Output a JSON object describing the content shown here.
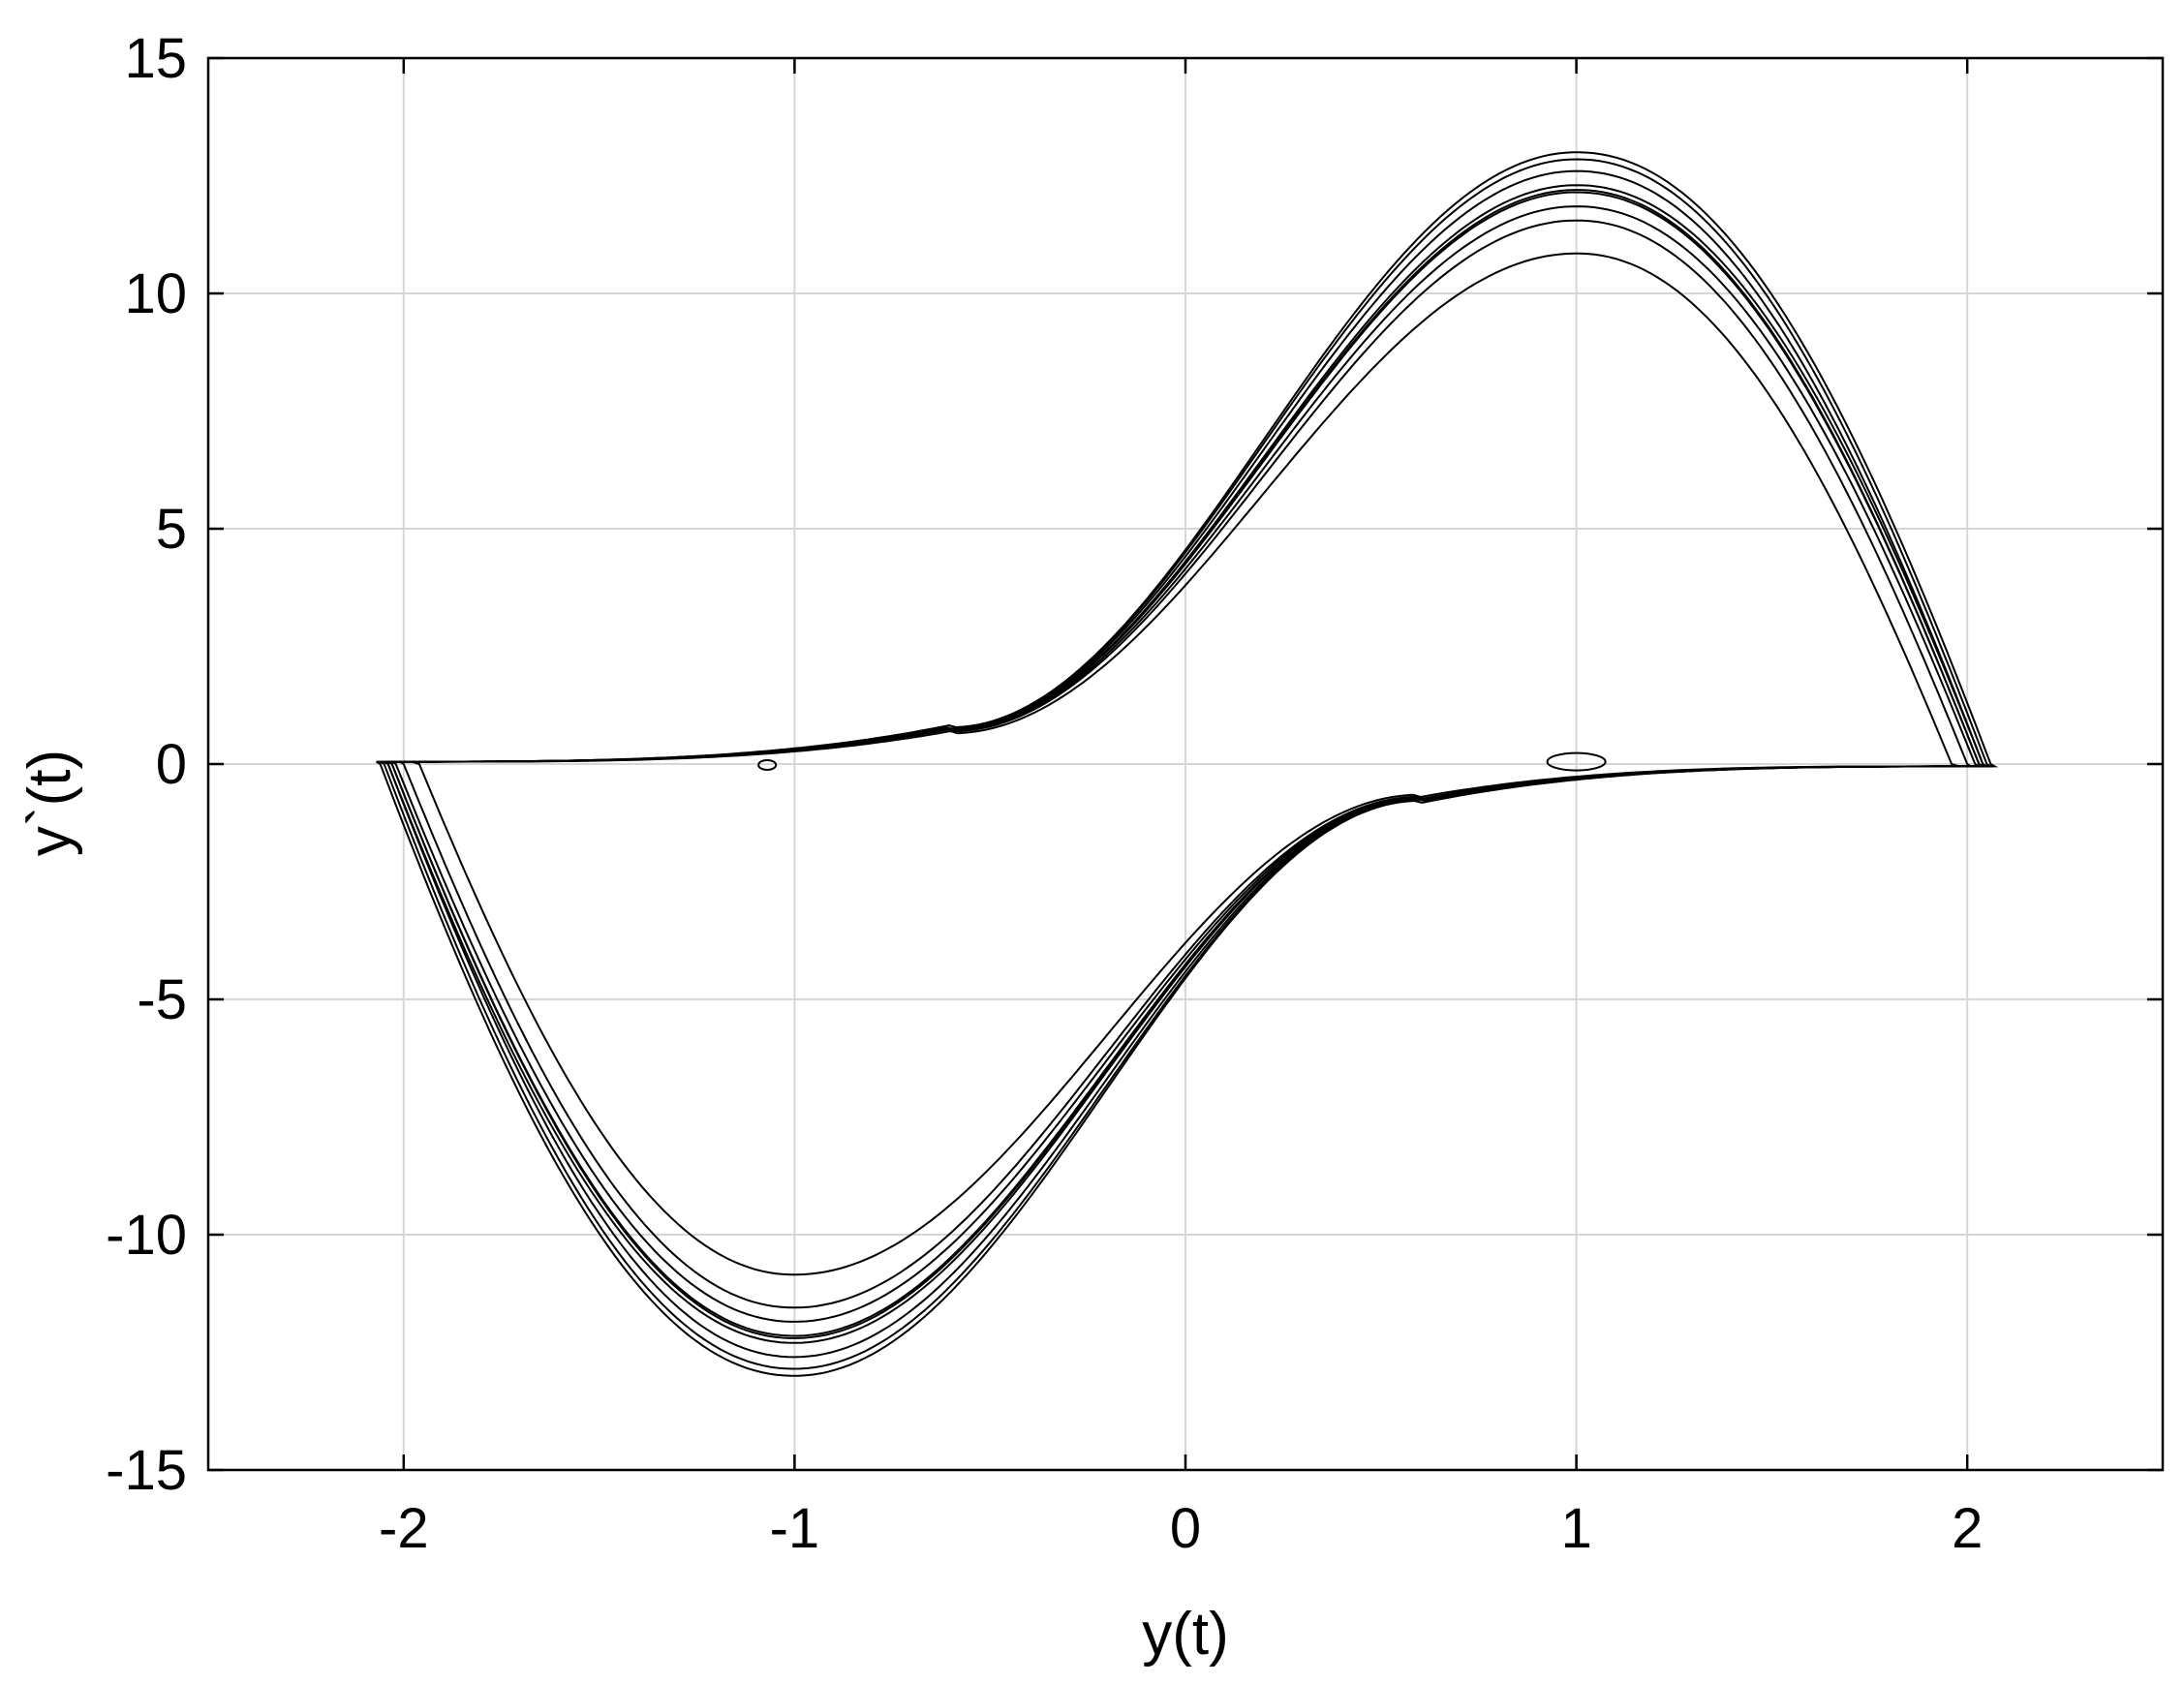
{
  "chart_data": {
    "type": "line",
    "title": "",
    "xlabel": "y(t)",
    "ylabel": "y`(t)",
    "xlim": [
      -2.5,
      2.5
    ],
    "ylim": [
      -15,
      15
    ],
    "xticks": [
      -2,
      -1,
      0,
      1,
      2
    ],
    "yticks": [
      -15,
      -10,
      -5,
      0,
      5,
      10,
      15
    ],
    "xtick_labels": [
      "-2",
      "-1",
      "0",
      "1",
      "2"
    ],
    "ytick_labels": [
      "-15",
      "-10",
      "-5",
      "0",
      "5",
      "10",
      "15"
    ],
    "grid": true,
    "line_color": "#000000",
    "series": [
      {
        "values_description_free": true,
        "peak_amplitude": 13.0,
        "x_extent": [
          -2.07,
          2.06
        ]
      },
      {
        "values_description_free": true,
        "peak_amplitude": 12.85,
        "x_extent": [
          -2.06,
          2.05
        ]
      },
      {
        "values_description_free": true,
        "peak_amplitude": 12.6,
        "x_extent": [
          -2.05,
          2.04
        ]
      },
      {
        "values_description_free": true,
        "peak_amplitude": 12.3,
        "x_extent": [
          -2.05,
          2.04
        ]
      },
      {
        "values_description_free": true,
        "peak_amplitude": 12.2,
        "x_extent": [
          -2.04,
          2.03
        ]
      },
      {
        "values_description_free": true,
        "peak_amplitude": 12.15,
        "x_extent": [
          -2.04,
          2.03
        ]
      },
      {
        "values_description_free": true,
        "peak_amplitude": 11.85,
        "x_extent": [
          -2.03,
          2.02
        ]
      },
      {
        "values_description_free": true,
        "peak_amplitude": 11.55,
        "x_extent": [
          -2.01,
          2.0
        ]
      },
      {
        "values_description_free": true,
        "peak_amplitude": 10.85,
        "x_extent": [
          -1.98,
          1.96
        ]
      }
    ]
  }
}
